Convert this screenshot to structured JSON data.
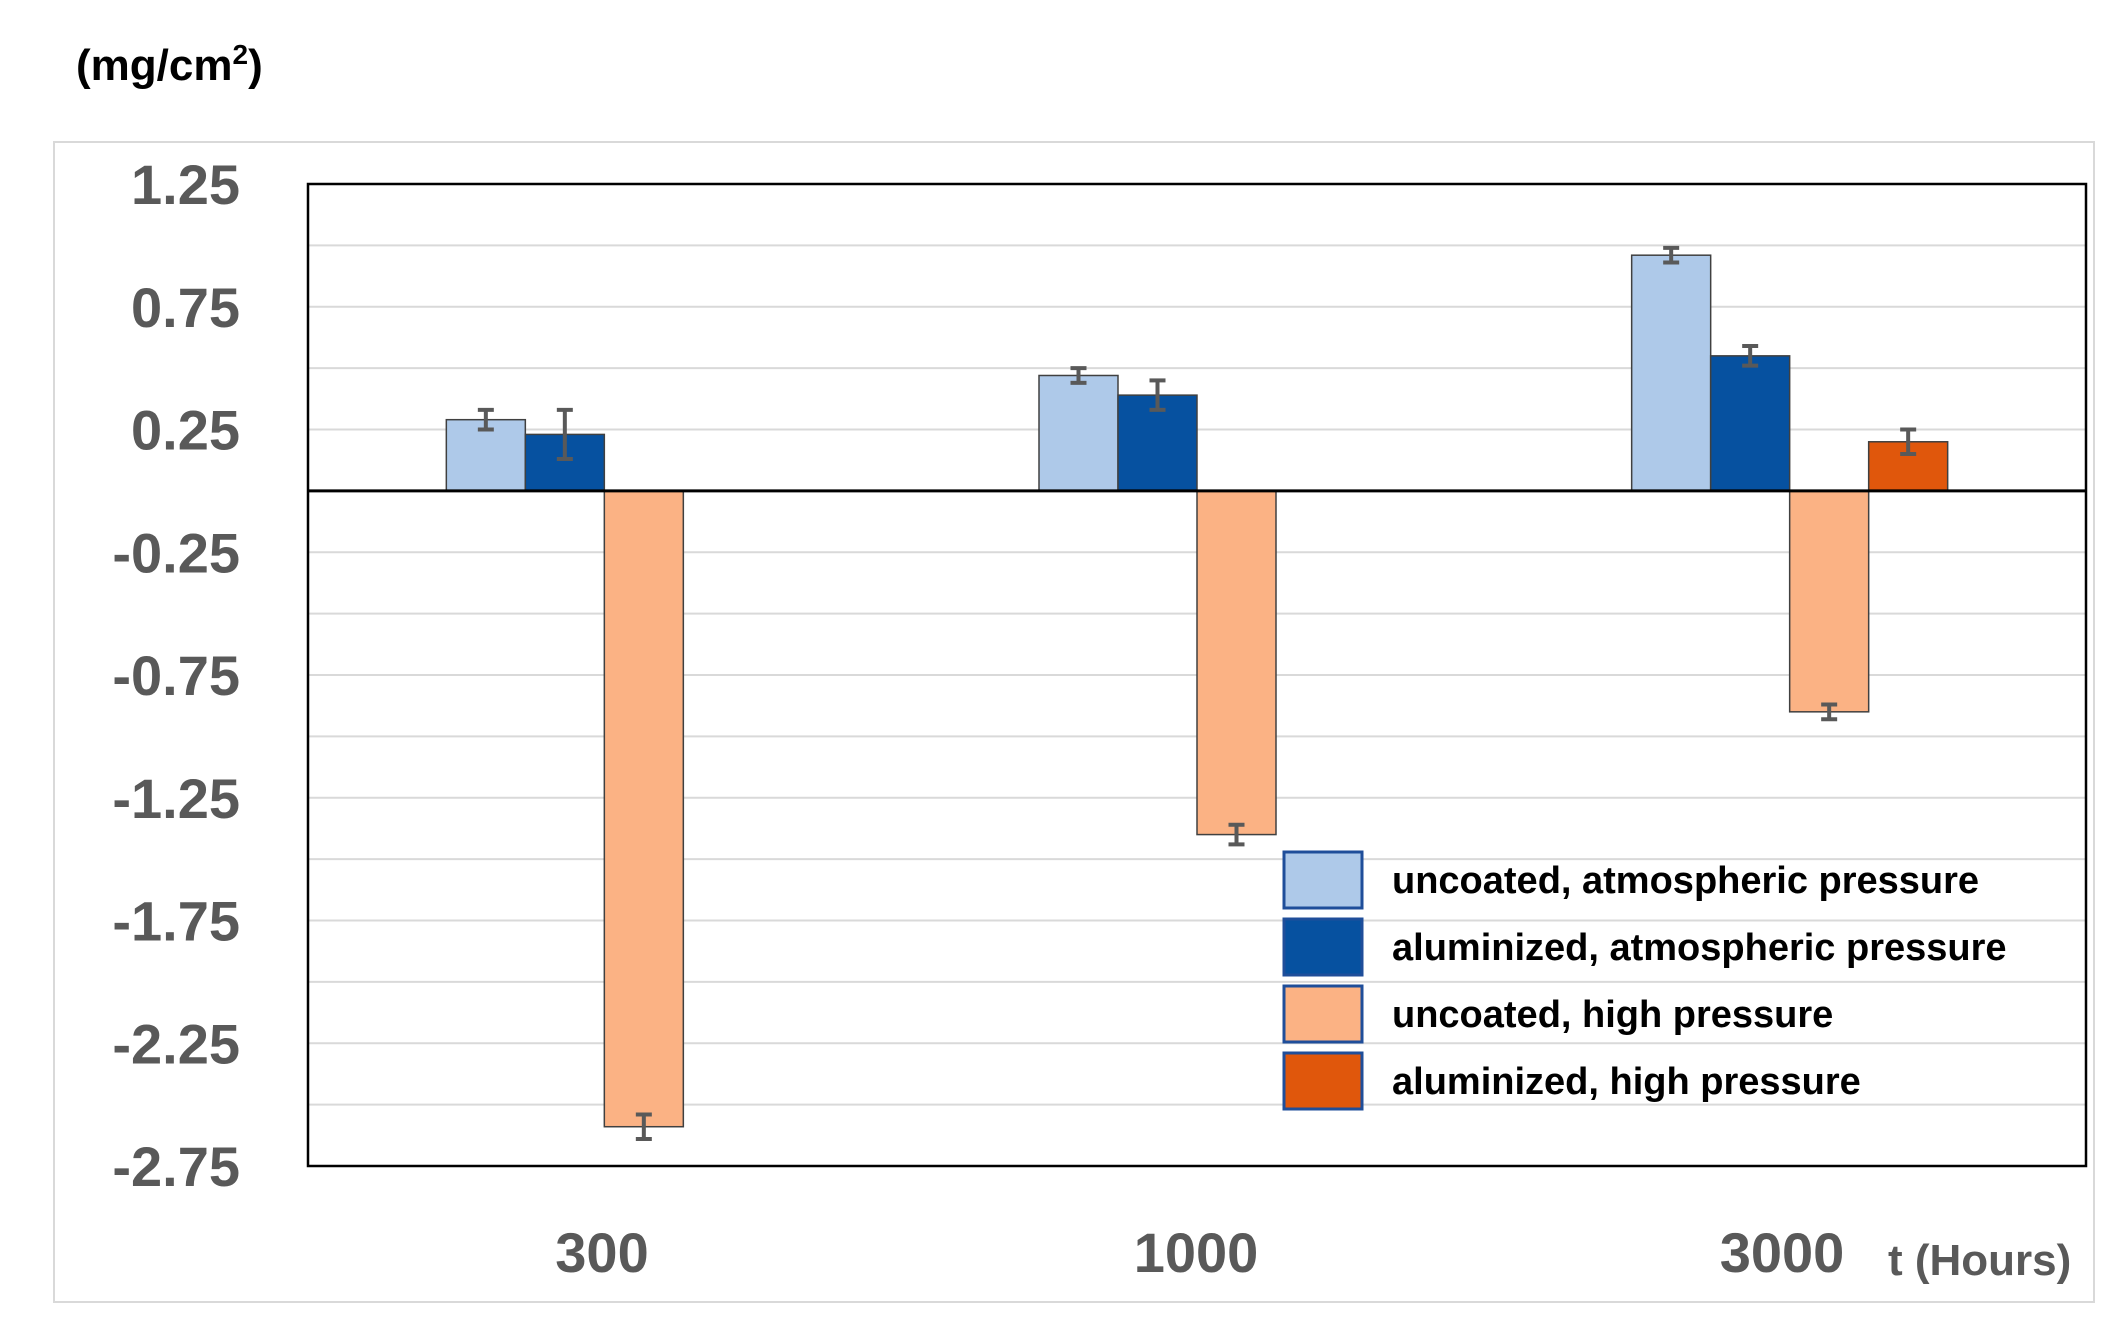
{
  "chart_data": {
    "type": "bar",
    "title": "",
    "ylabel": "(mg/cm2)",
    "ylabel_main": "(mg/cm",
    "ylabel_sup": "2",
    "ylabel_close": ")",
    "xlabel": "t (Hours)",
    "ylim": [
      -2.75,
      1.25
    ],
    "yticks": [
      1.25,
      0.75,
      0.25,
      -0.25,
      -0.75,
      -1.25,
      -1.75,
      -2.25,
      -2.75
    ],
    "ytick_labels": [
      "1.25",
      "0.75",
      "0.25",
      "-0.25",
      "-0.75",
      "-1.25",
      "-1.75",
      "-2.25",
      "-2.75"
    ],
    "grid": true,
    "legend_position": "bottom-right",
    "categories": [
      "300",
      "1000",
      "3000"
    ],
    "series": [
      {
        "name": "uncoated, atmospheric pressure",
        "color": "#aec9e9",
        "values": [
          0.29,
          0.47,
          0.96
        ],
        "errors": [
          0.04,
          0.03,
          0.03
        ]
      },
      {
        "name": "aluminized, atmospheric pressure",
        "color": "#0651a0",
        "values": [
          0.23,
          0.39,
          0.55
        ],
        "errors": [
          0.1,
          0.06,
          0.04
        ]
      },
      {
        "name": "uncoated, high pressure",
        "color": "#fbb284",
        "values": [
          -2.59,
          -1.4,
          -0.9
        ],
        "errors": [
          0.05,
          0.04,
          0.03
        ]
      },
      {
        "name": "aluminized, high pressure",
        "color": "#e0570c",
        "values": [
          null,
          null,
          0.2
        ],
        "errors": [
          null,
          null,
          0.05
        ]
      }
    ]
  }
}
